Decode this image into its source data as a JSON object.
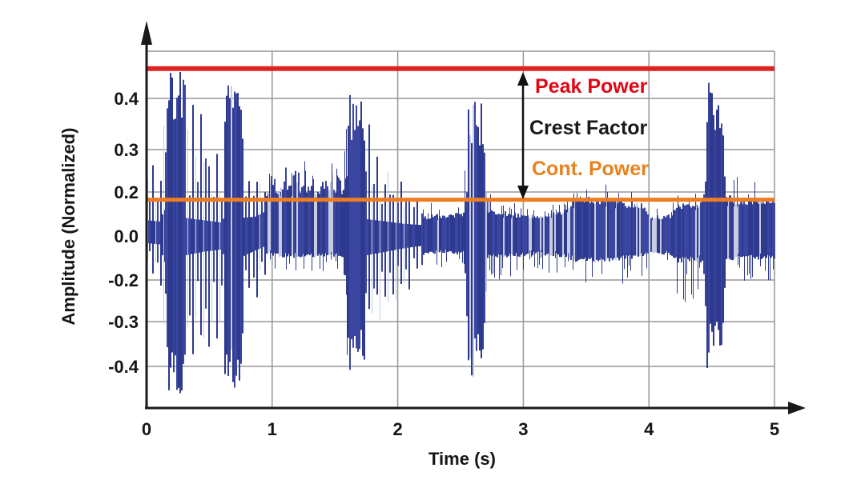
{
  "figure": {
    "background": "#ffffff"
  },
  "chart_data": {
    "type": "line",
    "subtype": "audio-waveform-envelope",
    "title": "",
    "xlabel": "Time (s)",
    "ylabel": "Amplitude (Normalized)",
    "xlim": [
      0,
      5
    ],
    "x_ticks": [
      "0",
      "1",
      "2",
      "3",
      "4",
      "5"
    ],
    "y_tick_labels": [
      "0.4",
      "0.3",
      "0.2",
      "0.0",
      "-0.2",
      "-0.3",
      "-0.4"
    ],
    "grid": true,
    "colors": {
      "waveform": "#2e3a8e",
      "waveform_alt": "#3a46a0",
      "waveform_streak": "#c8cce2",
      "gridline": "#979797",
      "axis": "#1a1a1a"
    },
    "annotations": {
      "peak_power": {
        "label": "Peak Power",
        "color": "#e20613",
        "line_color": "#dd2420",
        "level": 0.46
      },
      "crest_factor": {
        "label": "Crest Factor",
        "color": "#1a1a1a"
      },
      "cont_power": {
        "label": "Cont. Power",
        "color": "#e8821e",
        "line_color": "#ee7d1f",
        "level": 0.165
      }
    },
    "envelope": [
      {
        "t": 0.0,
        "st": 0.27,
        "bt": 0.13,
        "bb": -0.06,
        "sb": -0.13,
        "m": "s"
      },
      {
        "t": 0.1,
        "st": 0.27,
        "bt": 0.12,
        "bb": -0.07,
        "sb": -0.22,
        "m": "s"
      },
      {
        "t": 0.15,
        "st": 0.44,
        "bt": 0.26,
        "bb": -0.28,
        "sb": -0.44,
        "m": "b"
      },
      {
        "t": 0.27,
        "st": 0.44,
        "bt": 0.24,
        "bb": -0.26,
        "sb": -0.45,
        "m": "b"
      },
      {
        "t": 0.3,
        "st": 0.42,
        "bt": 0.15,
        "bb": -0.16,
        "sb": -0.42,
        "m": "s"
      },
      {
        "t": 0.45,
        "st": 0.37,
        "bt": 0.13,
        "bb": -0.13,
        "sb": -0.38,
        "m": "s"
      },
      {
        "t": 0.6,
        "st": 0.31,
        "bt": 0.11,
        "bb": -0.11,
        "sb": -0.33,
        "m": "s"
      },
      {
        "t": 0.63,
        "st": 0.45,
        "bt": 0.28,
        "bb": -0.32,
        "sb": -0.46,
        "m": "b"
      },
      {
        "t": 0.73,
        "st": 0.43,
        "bt": 0.24,
        "bb": -0.28,
        "sb": -0.44,
        "m": "b"
      },
      {
        "t": 0.76,
        "st": 0.33,
        "bt": 0.15,
        "bb": -0.17,
        "sb": -0.35,
        "m": "s"
      },
      {
        "t": 0.86,
        "st": 0.26,
        "bt": 0.16,
        "bb": -0.12,
        "sb": -0.27,
        "m": "s"
      },
      {
        "t": 0.95,
        "st": 0.25,
        "bt": 0.21,
        "bb": -0.08,
        "sb": -0.17,
        "m": "d"
      },
      {
        "t": 1.1,
        "st": 0.26,
        "bt": 0.23,
        "bb": -0.09,
        "sb": -0.15,
        "m": "d"
      },
      {
        "t": 1.35,
        "st": 0.25,
        "bt": 0.22,
        "bb": -0.09,
        "sb": -0.16,
        "m": "d"
      },
      {
        "t": 1.56,
        "st": 0.25,
        "bt": 0.22,
        "bb": -0.09,
        "sb": -0.16,
        "m": "d"
      },
      {
        "t": 1.59,
        "st": 0.4,
        "bt": 0.24,
        "bb": -0.28,
        "sb": -0.41,
        "m": "b"
      },
      {
        "t": 1.7,
        "st": 0.38,
        "bt": 0.2,
        "bb": -0.24,
        "sb": -0.4,
        "m": "b"
      },
      {
        "t": 1.74,
        "st": 0.35,
        "bt": 0.14,
        "bb": -0.16,
        "sb": -0.36,
        "m": "s"
      },
      {
        "t": 1.9,
        "st": 0.28,
        "bt": 0.12,
        "bb": -0.13,
        "sb": -0.3,
        "m": "s"
      },
      {
        "t": 2.05,
        "st": 0.22,
        "bt": 0.1,
        "bb": -0.1,
        "sb": -0.25,
        "m": "s"
      },
      {
        "t": 2.2,
        "st": 0.16,
        "bt": 0.09,
        "bb": -0.08,
        "sb": -0.18,
        "m": "d"
      },
      {
        "t": 2.35,
        "st": 0.13,
        "bt": 0.09,
        "bb": -0.07,
        "sb": -0.14,
        "m": "d"
      },
      {
        "t": 2.52,
        "st": 0.14,
        "bt": 0.1,
        "bb": -0.08,
        "sb": -0.15,
        "m": "d"
      },
      {
        "t": 2.55,
        "st": 0.39,
        "bt": 0.24,
        "bb": -0.3,
        "sb": -0.42,
        "m": "b"
      },
      {
        "t": 2.67,
        "st": 0.37,
        "bt": 0.2,
        "bb": -0.26,
        "sb": -0.4,
        "m": "b"
      },
      {
        "t": 2.71,
        "st": 0.19,
        "bt": 0.11,
        "bb": -0.1,
        "sb": -0.2,
        "m": "d"
      },
      {
        "t": 2.9,
        "st": 0.15,
        "bt": 0.1,
        "bb": -0.09,
        "sb": -0.18,
        "m": "d"
      },
      {
        "t": 3.1,
        "st": 0.13,
        "bt": 0.09,
        "bb": -0.08,
        "sb": -0.15,
        "m": "d"
      },
      {
        "t": 3.3,
        "st": 0.16,
        "bt": 0.11,
        "bb": -0.09,
        "sb": -0.17,
        "m": "d"
      },
      {
        "t": 3.42,
        "st": 0.22,
        "bt": 0.17,
        "bb": -0.11,
        "sb": -0.2,
        "m": "d"
      },
      {
        "t": 3.62,
        "st": 0.22,
        "bt": 0.17,
        "bb": -0.11,
        "sb": -0.21,
        "m": "d"
      },
      {
        "t": 3.8,
        "st": 0.2,
        "bt": 0.15,
        "bb": -0.1,
        "sb": -0.2,
        "m": "d"
      },
      {
        "t": 3.96,
        "st": 0.18,
        "bt": 0.14,
        "bb": -0.09,
        "sb": -0.18,
        "m": "d"
      },
      {
        "t": 4.0,
        "st": 0.13,
        "bt": 0.09,
        "bb": -0.07,
        "sb": -0.13,
        "m": "d"
      },
      {
        "t": 4.16,
        "st": 0.13,
        "bt": 0.09,
        "bb": -0.08,
        "sb": -0.14,
        "m": "d"
      },
      {
        "t": 4.22,
        "st": 0.2,
        "bt": 0.14,
        "bb": -0.11,
        "sb": -0.26,
        "m": "d"
      },
      {
        "t": 4.42,
        "st": 0.21,
        "bt": 0.15,
        "bb": -0.11,
        "sb": -0.23,
        "m": "d"
      },
      {
        "t": 4.45,
        "st": 0.42,
        "bt": 0.26,
        "bb": -0.28,
        "sb": -0.39,
        "m": "b"
      },
      {
        "t": 4.57,
        "st": 0.39,
        "bt": 0.21,
        "bb": -0.24,
        "sb": -0.37,
        "m": "b"
      },
      {
        "t": 4.61,
        "st": 0.23,
        "bt": 0.17,
        "bb": -0.1,
        "sb": -0.21,
        "m": "d"
      },
      {
        "t": 4.8,
        "st": 0.22,
        "bt": 0.16,
        "bb": -0.1,
        "sb": -0.21,
        "m": "d"
      },
      {
        "t": 5.0,
        "st": 0.21,
        "bt": 0.17,
        "bb": -0.1,
        "sb": -0.2,
        "m": "d"
      }
    ]
  }
}
